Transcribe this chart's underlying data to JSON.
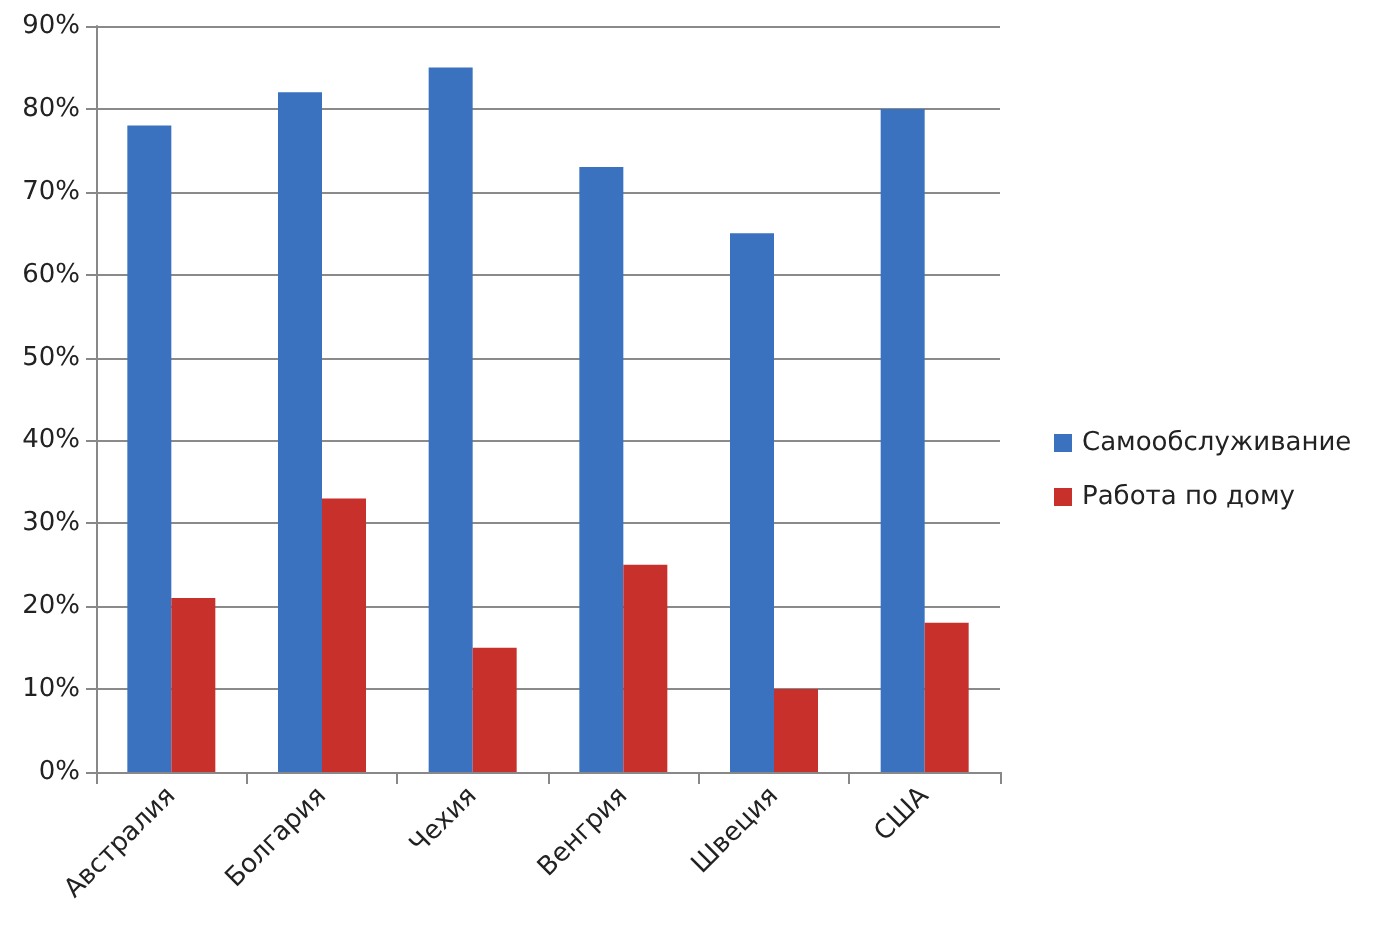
{
  "chart_data": {
    "type": "bar",
    "categories": [
      "Австралия",
      "Болгария",
      "Чехия",
      "Венгрия",
      "Швеция",
      "США"
    ],
    "series": [
      {
        "name": "Самообслуживание",
        "color": "#3a72c0",
        "values": [
          78,
          82,
          85,
          73,
          65,
          80
        ]
      },
      {
        "name": "Работа по дому",
        "color": "#c8302c",
        "values": [
          21,
          33,
          15,
          25,
          10,
          18
        ]
      }
    ],
    "ylim": [
      0,
      90
    ],
    "yticks": [
      {
        "value": 0,
        "label": "0%"
      },
      {
        "value": 10,
        "label": "10%"
      },
      {
        "value": 20,
        "label": "20%"
      },
      {
        "value": 30,
        "label": "30%"
      },
      {
        "value": 40,
        "label": "40%"
      },
      {
        "value": 50,
        "label": "50%"
      },
      {
        "value": 60,
        "label": "60%"
      },
      {
        "value": 70,
        "label": "70%"
      },
      {
        "value": 80,
        "label": "80%"
      },
      {
        "value": 90,
        "label": "90%"
      }
    ],
    "grid": "y",
    "legend": "right"
  }
}
